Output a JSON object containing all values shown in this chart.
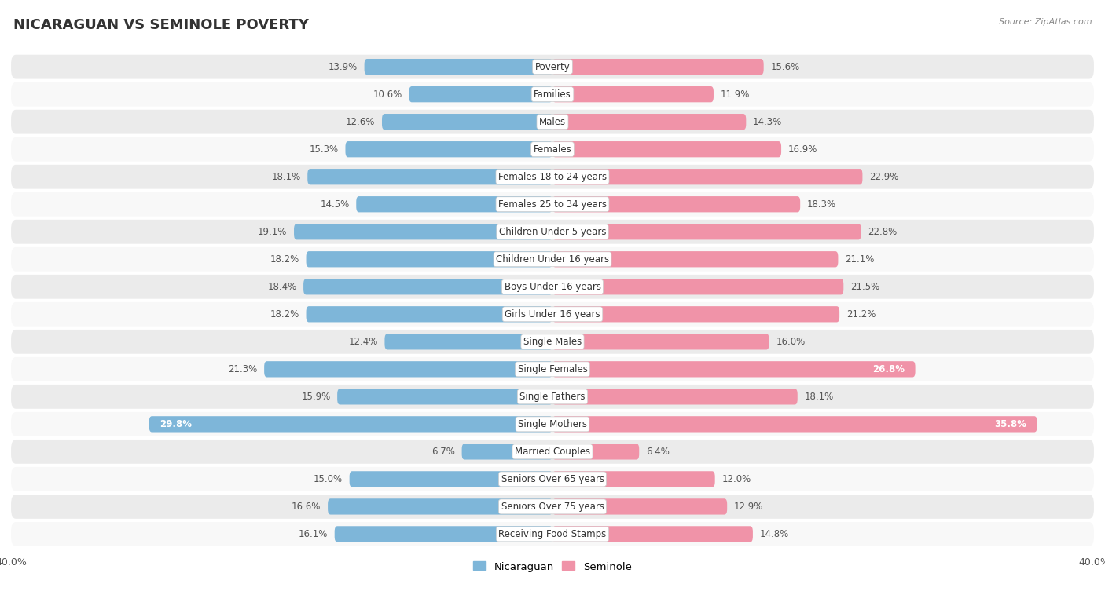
{
  "title": "NICARAGUAN VS SEMINOLE POVERTY",
  "source": "Source: ZipAtlas.com",
  "categories": [
    "Poverty",
    "Families",
    "Males",
    "Females",
    "Females 18 to 24 years",
    "Females 25 to 34 years",
    "Children Under 5 years",
    "Children Under 16 years",
    "Boys Under 16 years",
    "Girls Under 16 years",
    "Single Males",
    "Single Females",
    "Single Fathers",
    "Single Mothers",
    "Married Couples",
    "Seniors Over 65 years",
    "Seniors Over 75 years",
    "Receiving Food Stamps"
  ],
  "nicaraguan": [
    13.9,
    10.6,
    12.6,
    15.3,
    18.1,
    14.5,
    19.1,
    18.2,
    18.4,
    18.2,
    12.4,
    21.3,
    15.9,
    29.8,
    6.7,
    15.0,
    16.6,
    16.1
  ],
  "seminole": [
    15.6,
    11.9,
    14.3,
    16.9,
    22.9,
    18.3,
    22.8,
    21.1,
    21.5,
    21.2,
    16.0,
    26.8,
    18.1,
    35.8,
    6.4,
    12.0,
    12.9,
    14.8
  ],
  "blue_color": "#7EB6D9",
  "pink_color": "#F093A8",
  "bg_color": "#FFFFFF",
  "row_even_color": "#EBEBEB",
  "row_odd_color": "#F8F8F8",
  "axis_max": 40.0,
  "bar_height": 0.58,
  "title_fontsize": 13,
  "value_fontsize": 8.5,
  "cat_fontsize": 8.5,
  "white_threshold": 24.0,
  "legend_label_left": "Nicaraguan",
  "legend_label_right": "Seminole"
}
